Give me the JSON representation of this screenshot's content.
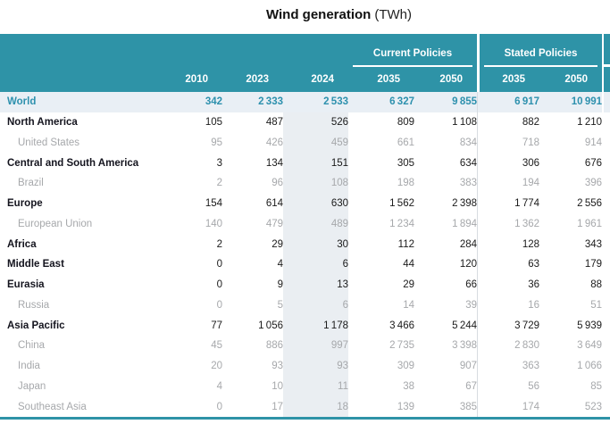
{
  "title": {
    "main": "Wind generation",
    "unit": "(TWh)"
  },
  "table": {
    "scenario_groups": [
      {
        "label": "Current Policies",
        "years": [
          "2035",
          "2050"
        ]
      },
      {
        "label": "Stated Policies",
        "years": [
          "2035",
          "2050"
        ]
      }
    ],
    "year_columns": [
      "2010",
      "2023",
      "2024",
      "2035",
      "2050",
      "2035",
      "2050"
    ]
  },
  "chart_data": {
    "type": "table",
    "title": "Wind generation",
    "unit": "TWh",
    "columns": [
      "2010",
      "2023",
      "2024",
      "Current Policies 2035",
      "Current Policies 2050",
      "Stated Policies 2035",
      "Stated Policies 2050"
    ],
    "rows": [
      {
        "region": "World",
        "style": "world",
        "values": [
          342,
          2333,
          2533,
          6327,
          9855,
          6917,
          10991
        ]
      },
      {
        "region": "North America",
        "style": "parent",
        "values": [
          105,
          487,
          526,
          809,
          1108,
          882,
          1210
        ]
      },
      {
        "region": "United States",
        "style": "sub",
        "values": [
          95,
          426,
          459,
          661,
          834,
          718,
          914
        ]
      },
      {
        "region": "Central and South America",
        "style": "parent",
        "values": [
          3,
          134,
          151,
          305,
          634,
          306,
          676
        ]
      },
      {
        "region": "Brazil",
        "style": "sub",
        "values": [
          2,
          96,
          108,
          198,
          383,
          194,
          396
        ]
      },
      {
        "region": "Europe",
        "style": "parent",
        "values": [
          154,
          614,
          630,
          1562,
          2398,
          1774,
          2556
        ]
      },
      {
        "region": "European Union",
        "style": "sub",
        "values": [
          140,
          479,
          489,
          1234,
          1894,
          1362,
          1961
        ]
      },
      {
        "region": "Africa",
        "style": "parent",
        "values": [
          2,
          29,
          30,
          112,
          284,
          128,
          343
        ]
      },
      {
        "region": "Middle East",
        "style": "parent",
        "values": [
          0,
          4,
          6,
          44,
          120,
          63,
          179
        ]
      },
      {
        "region": "Eurasia",
        "style": "parent",
        "values": [
          0,
          9,
          13,
          29,
          66,
          36,
          88
        ]
      },
      {
        "region": "Russia",
        "style": "sub",
        "values": [
          0,
          5,
          6,
          14,
          39,
          16,
          51
        ]
      },
      {
        "region": "Asia Pacific",
        "style": "parent",
        "values": [
          77,
          1056,
          1178,
          3466,
          5244,
          3729,
          5939
        ]
      },
      {
        "region": "China",
        "style": "sub",
        "values": [
          45,
          886,
          997,
          2735,
          3398,
          2830,
          3649
        ]
      },
      {
        "region": "India",
        "style": "sub",
        "values": [
          20,
          93,
          93,
          309,
          907,
          363,
          1066
        ]
      },
      {
        "region": "Japan",
        "style": "sub",
        "values": [
          4,
          10,
          11,
          38,
          67,
          56,
          85
        ]
      },
      {
        "region": "Southeast Asia",
        "style": "sub",
        "values": [
          0,
          17,
          18,
          139,
          385,
          174,
          523
        ]
      }
    ]
  },
  "colors": {
    "header_teal": "#2e93a7",
    "world_row_bg": "#e9eff5",
    "world_text": "#2e91ae",
    "highlight_column_bg": "#eaeef2",
    "sub_row_text": "#a6a8ab",
    "separator_line": "#d7dce1",
    "bottom_border": "#2e93a7"
  }
}
